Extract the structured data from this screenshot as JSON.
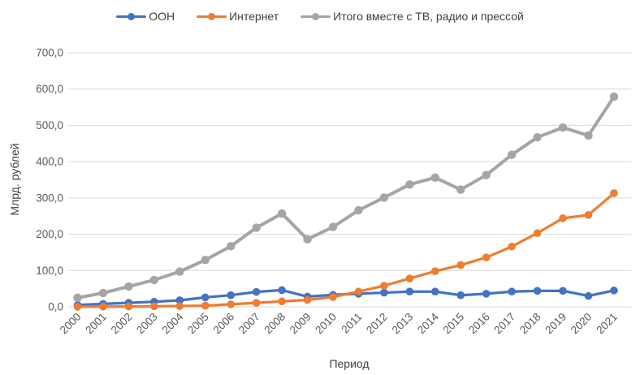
{
  "chart_data": {
    "type": "line",
    "title": "",
    "xlabel": "Период",
    "ylabel": "Млрд. рублей",
    "categories": [
      "2000",
      "2001",
      "2002",
      "2003",
      "2004",
      "2005",
      "2006",
      "2007",
      "2008",
      "2009",
      "2010",
      "2011",
      "2012",
      "2013",
      "2014",
      "2015",
      "2016",
      "2017",
      "2018",
      "2019",
      "2020",
      "2021"
    ],
    "series": [
      {
        "name": "OOH",
        "color": "#4472C4",
        "values": [
          5,
          8,
          11,
          14,
          18,
          26,
          32,
          41,
          46,
          28,
          33,
          36,
          39,
          42,
          42,
          32,
          36,
          42,
          44,
          44,
          30,
          45
        ]
      },
      {
        "name": "Интернет",
        "color": "#ED7D31",
        "values": [
          0.2,
          0.5,
          0.9,
          1.4,
          2.1,
          3.2,
          7,
          11,
          15,
          19,
          27,
          42,
          58,
          78,
          98,
          115,
          136,
          166,
          203,
          244,
          253,
          313
        ]
      },
      {
        "name": "Итого вместе с ТВ, радио и прессой",
        "color": "#A5A5A5",
        "values": [
          25,
          38,
          56,
          74,
          97,
          129,
          167,
          218,
          257,
          186,
          220,
          266,
          301,
          337,
          356,
          323,
          363,
          419,
          467,
          494,
          472,
          579
        ]
      }
    ],
    "ylim": [
      0,
      700
    ],
    "yticks": [
      "0,0",
      "100,0",
      "200,0",
      "300,0",
      "400,0",
      "500,0",
      "600,0",
      "700,0"
    ],
    "grid": true,
    "legend_position": "top"
  },
  "colors": {
    "background": "#FFFFFF",
    "gridline": "#D9D9D9",
    "tick_text": "#595959",
    "title_text": "#404040"
  }
}
